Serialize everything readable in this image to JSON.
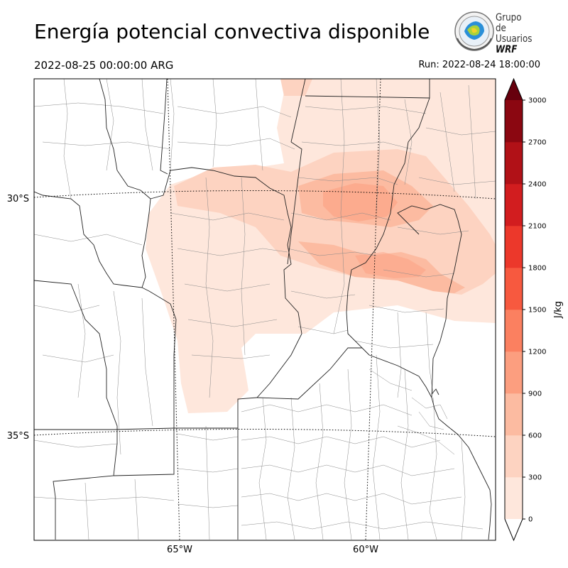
{
  "title": "Energía potencial convectiva disponible",
  "subtitle": "2022-08-25 00:00:00 ARG",
  "run": "Run: 2022-08-24 18:00:00",
  "logo": {
    "line1": "Grupo de",
    "line2": "Usuarios",
    "line3": "WRF"
  },
  "lat_labels": [
    "30°S",
    "35°S"
  ],
  "lon_labels": [
    "65°W",
    "60°W"
  ],
  "colorbar": {
    "unit": "J/kg",
    "ticks": [
      "0",
      "300",
      "600",
      "900",
      "1200",
      "1500",
      "1800",
      "2100",
      "2400",
      "2700",
      "3000"
    ],
    "colors": [
      "#fee7dc",
      "#fdd3c1",
      "#fcbba1",
      "#fc9e7f",
      "#fb8060",
      "#f7593f",
      "#ec382b",
      "#d21d1f",
      "#b11117",
      "#8b0711"
    ],
    "over_color": "#67000d"
  }
}
